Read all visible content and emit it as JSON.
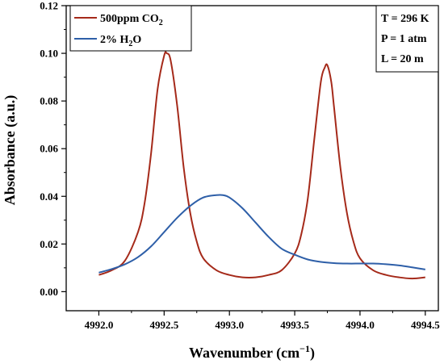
{
  "chart_data": {
    "type": "line",
    "xlabel": "Wavenumber (cm",
    "xlabel_sup": "−1",
    "xlabel_end": ")",
    "ylabel": "Absorbance (a.u.)",
    "xlim": [
      4991.75,
      4994.6
    ],
    "ylim": [
      -0.008,
      0.12
    ],
    "xticks": [
      4992.0,
      4992.5,
      4993.0,
      4993.5,
      4994.0,
      4994.5
    ],
    "xtick_labels": [
      "4992.0",
      "4992.5",
      "4993.0",
      "4993.5",
      "4994.0",
      "4994.5"
    ],
    "yticks": [
      0.0,
      0.02,
      0.04,
      0.06,
      0.08,
      0.1,
      0.12
    ],
    "ytick_labels": [
      "0.00",
      "0.02",
      "0.04",
      "0.06",
      "0.08",
      "0.10",
      "0.12"
    ],
    "grid": false,
    "legend_position": "top-left",
    "series": [
      {
        "name_main": "500ppm CO",
        "name_sub": "2",
        "name_end": "",
        "color": "#a52a1a",
        "x": [
          4992.0,
          4992.1,
          4992.2,
          4992.3,
          4992.35,
          4992.4,
          4992.45,
          4992.5,
          4992.52,
          4992.55,
          4992.6,
          4992.65,
          4992.7,
          4992.75,
          4992.8,
          4992.9,
          4993.0,
          4993.1,
          4993.2,
          4993.3,
          4993.4,
          4993.5,
          4993.55,
          4993.6,
          4993.65,
          4993.7,
          4993.73,
          4993.75,
          4993.78,
          4993.8,
          4993.85,
          4993.9,
          4993.95,
          4994.0,
          4994.1,
          4994.2,
          4994.3,
          4994.4,
          4994.5
        ],
        "y": [
          0.007,
          0.009,
          0.013,
          0.025,
          0.037,
          0.058,
          0.085,
          0.099,
          0.1,
          0.097,
          0.078,
          0.052,
          0.033,
          0.021,
          0.014,
          0.009,
          0.007,
          0.006,
          0.006,
          0.007,
          0.009,
          0.016,
          0.024,
          0.039,
          0.064,
          0.088,
          0.094,
          0.095,
          0.088,
          0.078,
          0.052,
          0.033,
          0.021,
          0.014,
          0.009,
          0.007,
          0.006,
          0.0055,
          0.006
        ]
      },
      {
        "name_main": "2% H",
        "name_sub": "2",
        "name_end": "O",
        "color": "#2e5fa8",
        "x": [
          4992.0,
          4992.1,
          4992.2,
          4992.3,
          4992.4,
          4992.5,
          4992.6,
          4992.7,
          4992.8,
          4992.9,
          4992.95,
          4993.0,
          4993.1,
          4993.2,
          4993.3,
          4993.4,
          4993.5,
          4993.6,
          4993.7,
          4993.8,
          4993.9,
          4994.0,
          4994.1,
          4994.2,
          4994.3,
          4994.4,
          4994.5
        ],
        "y": [
          0.008,
          0.0095,
          0.0115,
          0.0145,
          0.019,
          0.025,
          0.031,
          0.036,
          0.0395,
          0.0405,
          0.0405,
          0.0395,
          0.035,
          0.029,
          0.023,
          0.018,
          0.0155,
          0.0135,
          0.0125,
          0.012,
          0.0118,
          0.0118,
          0.0118,
          0.0115,
          0.011,
          0.0102,
          0.0093
        ]
      }
    ],
    "conditions": [
      "T = 296 K",
      "P = 1 atm",
      "L = 20 m"
    ]
  }
}
